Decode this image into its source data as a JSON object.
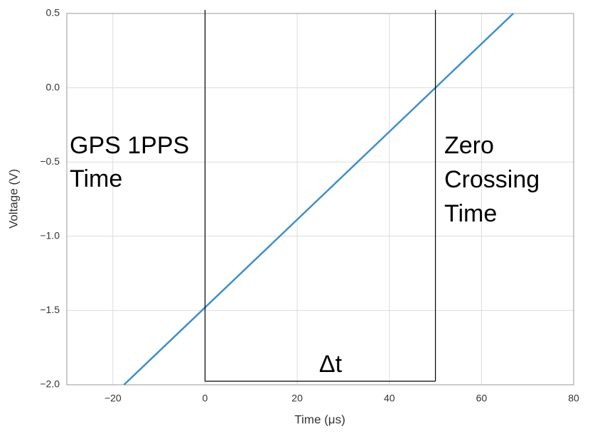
{
  "chart_data": {
    "type": "line",
    "xlabel": "Time (μs)",
    "ylabel": "Voltage (V)",
    "x": [
      -17.6,
      66.9
    ],
    "series": [
      {
        "color": "#3f8fc8",
        "values": [
          -2.0,
          0.5
        ]
      }
    ],
    "xlim": [
      -30,
      80
    ],
    "ylim": [
      -2.0,
      0.5
    ],
    "xticks": [
      {
        "value": -20,
        "label": "−20"
      },
      0,
      20,
      40,
      60,
      80
    ],
    "yticks": [
      0.5,
      {
        "value": 0,
        "label": "0.0"
      },
      {
        "value": -0.5,
        "label": "−0.5"
      },
      {
        "value": -1.0,
        "label": "−1.0"
      },
      {
        "value": -1.5,
        "label": "−1.5"
      },
      {
        "value": -2.0,
        "label": "−2.0"
      }
    ],
    "grid": true,
    "vlines": [
      0,
      50
    ],
    "annotations": [
      {
        "lines": [
          "GPS 1PPS",
          "Time"
        ]
      },
      {
        "lines": [
          "Zero",
          "Crossing",
          "Time"
        ]
      },
      {
        "lines": [
          "Δt"
        ]
      }
    ]
  }
}
